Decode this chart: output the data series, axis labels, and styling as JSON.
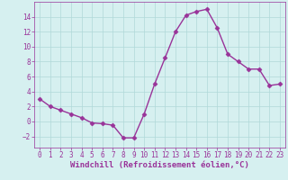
{
  "x": [
    0,
    1,
    2,
    3,
    4,
    5,
    6,
    7,
    8,
    9,
    10,
    11,
    12,
    13,
    14,
    15,
    16,
    17,
    18,
    19,
    20,
    21,
    22,
    23
  ],
  "y": [
    3,
    2,
    1.5,
    1,
    0.5,
    -0.2,
    -0.3,
    -0.5,
    -2.2,
    -2.2,
    1,
    5,
    8.5,
    12,
    14.2,
    14.7,
    15,
    12.5,
    9,
    8,
    7,
    7,
    4.8,
    5
  ],
  "line_color": "#993399",
  "marker": "D",
  "marker_size": 2.5,
  "linewidth": 1.0,
  "xlabel": "Windchill (Refroidissement éolien,°C)",
  "xlabel_fontsize": 6.5,
  "ylim": [
    -3.5,
    16
  ],
  "xlim": [
    -0.5,
    23.5
  ],
  "yticks": [
    -2,
    0,
    2,
    4,
    6,
    8,
    10,
    12,
    14
  ],
  "xticks": [
    0,
    1,
    2,
    3,
    4,
    5,
    6,
    7,
    8,
    9,
    10,
    11,
    12,
    13,
    14,
    15,
    16,
    17,
    18,
    19,
    20,
    21,
    22,
    23
  ],
  "grid_color": "#b0d8d8",
  "bg_color": "#d6f0f0",
  "tick_fontsize": 5.5,
  "fig_bg": "#d6f0f0"
}
